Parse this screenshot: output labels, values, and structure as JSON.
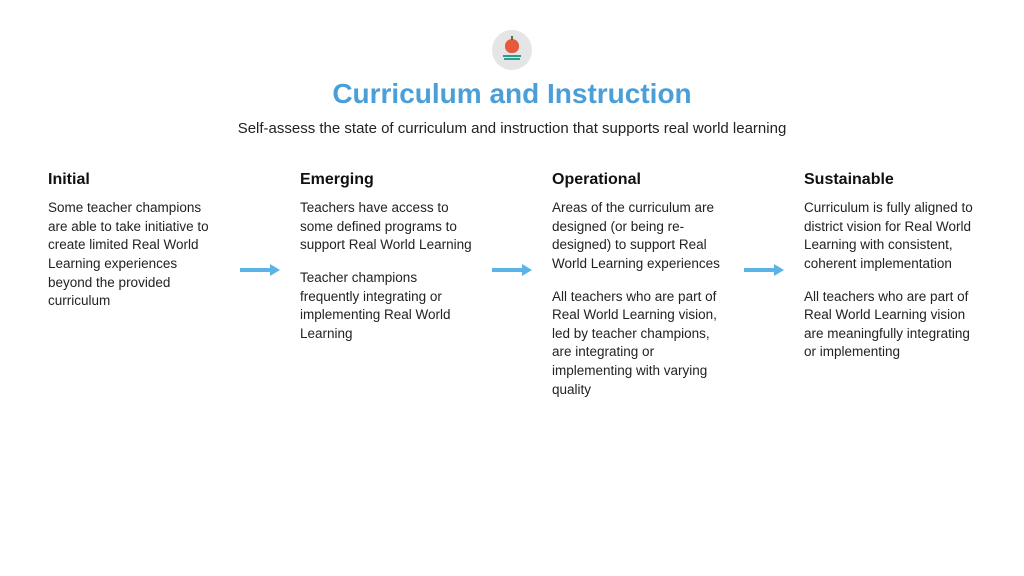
{
  "header": {
    "title": "Curriculum and Instruction",
    "title_color": "#4a9fd8",
    "subtitle": "Self-assess the state of curriculum and instruction that supports real world learning",
    "icon_bg": "#e5e5e5",
    "apple_color": "#e55a3c",
    "book_color": "#2a9d8f"
  },
  "arrow_color": "#5bb4e5",
  "background_color": "#ffffff",
  "stages": [
    {
      "title": "Initial",
      "paragraphs": [
        "Some teacher champions are able to take initiative to create limited Real World Learning experiences beyond the provided curriculum"
      ]
    },
    {
      "title": "Emerging",
      "paragraphs": [
        "Teachers have access to some defined programs to support Real World Learning",
        "Teacher champions frequently integrating or implementing Real World Learning"
      ]
    },
    {
      "title": "Operational",
      "paragraphs": [
        "Areas of the curriculum are designed (or being re-designed) to support Real World Learning experiences",
        "All teachers who are part of Real World Learning vision, led by teacher champions, are integrating or implementing with varying quality"
      ]
    },
    {
      "title": "Sustainable",
      "paragraphs": [
        "Curriculum is fully aligned to district vision for Real World Learning with consistent, coherent implementation",
        "All teachers who are part of Real World Learning vision are meaningfully integrating or implementing"
      ]
    }
  ]
}
